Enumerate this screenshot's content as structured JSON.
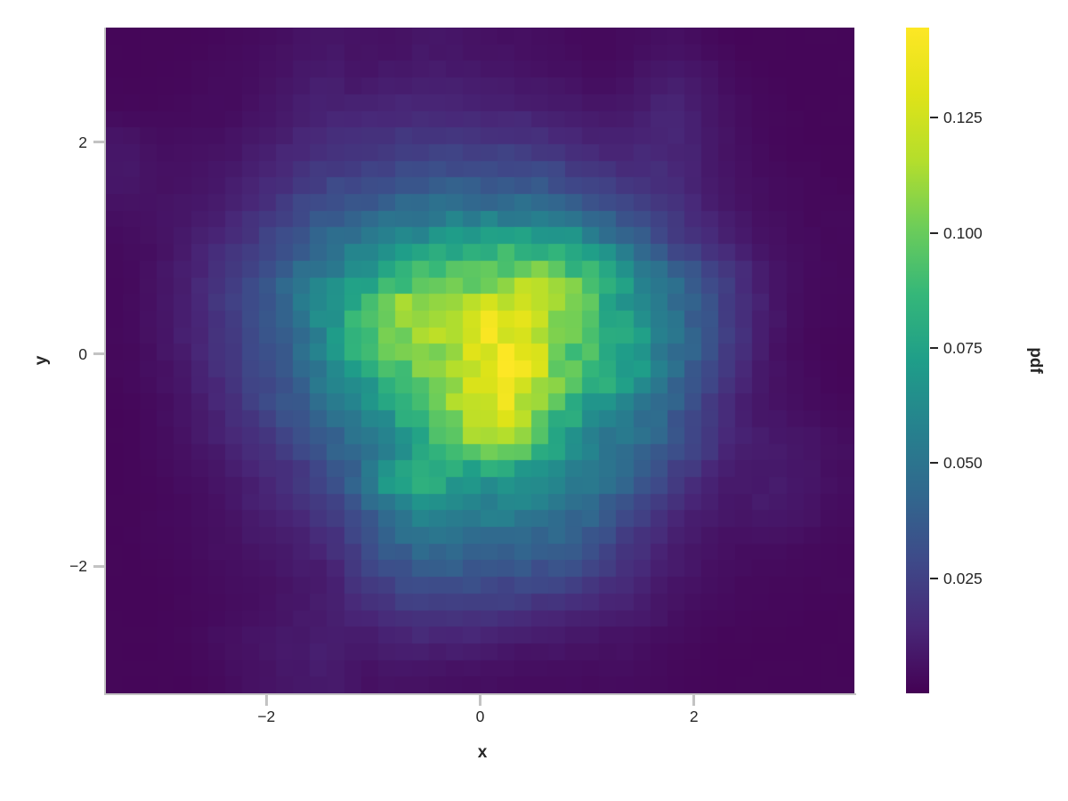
{
  "figure": {
    "background": "#ffffff",
    "text_color": "#262626",
    "spine_color": "#c3c3c3"
  },
  "axes": {
    "x": {
      "label": "x",
      "range": [
        -3.5,
        3.5
      ],
      "ticks": [
        {
          "value": -2,
          "label": "−2"
        },
        {
          "value": 0,
          "label": "0"
        },
        {
          "value": 2,
          "label": "2"
        }
      ]
    },
    "y": {
      "label": "y",
      "range": [
        -3.2,
        3.08
      ],
      "ticks": [
        {
          "value": 2,
          "label": "2"
        },
        {
          "value": 0,
          "label": "0"
        },
        {
          "value": -2,
          "label": "−2"
        }
      ]
    }
  },
  "colorbar": {
    "label": "pdf",
    "vmin": 0.0,
    "vmax": 0.1446,
    "ticks": [
      {
        "value": 0.125,
        "label": "0.125"
      },
      {
        "value": 0.1,
        "label": "0.100"
      },
      {
        "value": 0.075,
        "label": "0.075"
      },
      {
        "value": 0.05,
        "label": "0.050"
      },
      {
        "value": 0.025,
        "label": "0.025"
      }
    ]
  },
  "chart_data": {
    "type": "heatmap",
    "title": "",
    "xlabel": "x",
    "ylabel": "y",
    "value_label": "pdf",
    "x_range": [
      -3.5,
      3.5
    ],
    "y_range": [
      -3.2,
      3.08
    ],
    "vmin": 0.0,
    "vmax": 0.1446,
    "peak": {
      "x": 0.15,
      "y": -0.3,
      "value": 0.145
    },
    "colormap": {
      "name": "viridis",
      "stops": [
        "#440154",
        "#482878",
        "#3e4a89",
        "#31688e",
        "#26828e",
        "#1f9e89",
        "#35b779",
        "#6dcd59",
        "#b4de2c",
        "#dfe318",
        "#fde725"
      ]
    },
    "grid_order": "rows top (y=3.08) to bottom (y=-3.2), 20 rows x 22 cols",
    "nx": 22,
    "ny": 20,
    "values": [
      [
        0.002,
        0.002,
        0.002,
        0.003,
        0.004,
        0.006,
        0.008,
        0.006,
        0.006,
        0.008,
        0.007,
        0.006,
        0.005,
        0.004,
        0.003,
        0.004,
        0.006,
        0.004,
        0.002,
        0.002,
        0.002,
        0.002
      ],
      [
        0.002,
        0.002,
        0.003,
        0.004,
        0.005,
        0.008,
        0.01,
        0.008,
        0.01,
        0.01,
        0.009,
        0.008,
        0.007,
        0.006,
        0.004,
        0.006,
        0.01,
        0.008,
        0.004,
        0.002,
        0.002,
        0.002
      ],
      [
        0.003,
        0.003,
        0.004,
        0.004,
        0.006,
        0.01,
        0.013,
        0.012,
        0.014,
        0.015,
        0.014,
        0.013,
        0.012,
        0.01,
        0.008,
        0.009,
        0.014,
        0.01,
        0.005,
        0.003,
        0.002,
        0.002
      ],
      [
        0.008,
        0.005,
        0.005,
        0.006,
        0.009,
        0.013,
        0.017,
        0.018,
        0.021,
        0.022,
        0.022,
        0.021,
        0.02,
        0.016,
        0.012,
        0.013,
        0.015,
        0.01,
        0.006,
        0.003,
        0.002,
        0.002
      ],
      [
        0.009,
        0.006,
        0.006,
        0.009,
        0.013,
        0.018,
        0.024,
        0.026,
        0.03,
        0.033,
        0.034,
        0.033,
        0.032,
        0.028,
        0.021,
        0.018,
        0.016,
        0.011,
        0.006,
        0.004,
        0.003,
        0.002
      ],
      [
        0.006,
        0.006,
        0.008,
        0.012,
        0.018,
        0.026,
        0.034,
        0.038,
        0.044,
        0.049,
        0.05,
        0.05,
        0.048,
        0.044,
        0.035,
        0.026,
        0.02,
        0.013,
        0.008,
        0.005,
        0.003,
        0.003
      ],
      [
        0.004,
        0.006,
        0.01,
        0.016,
        0.024,
        0.035,
        0.046,
        0.055,
        0.062,
        0.068,
        0.075,
        0.08,
        0.082,
        0.075,
        0.06,
        0.042,
        0.028,
        0.018,
        0.01,
        0.006,
        0.004,
        0.003
      ],
      [
        0.003,
        0.006,
        0.012,
        0.02,
        0.03,
        0.044,
        0.058,
        0.068,
        0.085,
        0.1,
        0.095,
        0.1,
        0.11,
        0.1,
        0.085,
        0.062,
        0.048,
        0.034,
        0.02,
        0.008,
        0.004,
        0.003
      ],
      [
        0.003,
        0.007,
        0.013,
        0.022,
        0.034,
        0.048,
        0.065,
        0.09,
        0.11,
        0.115,
        0.12,
        0.13,
        0.125,
        0.105,
        0.088,
        0.068,
        0.05,
        0.036,
        0.021,
        0.009,
        0.004,
        0.003
      ],
      [
        0.003,
        0.006,
        0.012,
        0.02,
        0.03,
        0.042,
        0.06,
        0.095,
        0.105,
        0.11,
        0.115,
        0.14,
        0.13,
        0.1,
        0.09,
        0.075,
        0.052,
        0.036,
        0.02,
        0.008,
        0.003,
        0.002
      ],
      [
        0.003,
        0.005,
        0.01,
        0.018,
        0.028,
        0.038,
        0.055,
        0.07,
        0.085,
        0.1,
        0.11,
        0.145,
        0.125,
        0.095,
        0.085,
        0.072,
        0.048,
        0.032,
        0.016,
        0.007,
        0.004,
        0.002
      ],
      [
        0.002,
        0.004,
        0.008,
        0.015,
        0.024,
        0.034,
        0.05,
        0.058,
        0.075,
        0.1,
        0.115,
        0.135,
        0.11,
        0.085,
        0.065,
        0.055,
        0.04,
        0.026,
        0.012,
        0.007,
        0.005,
        0.003
      ],
      [
        0.002,
        0.004,
        0.007,
        0.012,
        0.018,
        0.026,
        0.038,
        0.045,
        0.06,
        0.085,
        0.1,
        0.105,
        0.095,
        0.07,
        0.052,
        0.045,
        0.038,
        0.026,
        0.012,
        0.01,
        0.008,
        0.005
      ],
      [
        0.002,
        0.003,
        0.005,
        0.008,
        0.013,
        0.018,
        0.03,
        0.045,
        0.08,
        0.088,
        0.07,
        0.07,
        0.065,
        0.06,
        0.05,
        0.042,
        0.025,
        0.015,
        0.008,
        0.01,
        0.008,
        0.005
      ],
      [
        0.002,
        0.003,
        0.004,
        0.006,
        0.012,
        0.015,
        0.022,
        0.035,
        0.055,
        0.065,
        0.06,
        0.055,
        0.055,
        0.05,
        0.04,
        0.028,
        0.018,
        0.01,
        0.008,
        0.01,
        0.008,
        0.004
      ],
      [
        0.002,
        0.003,
        0.004,
        0.006,
        0.008,
        0.01,
        0.015,
        0.028,
        0.04,
        0.05,
        0.045,
        0.045,
        0.042,
        0.04,
        0.03,
        0.02,
        0.012,
        0.008,
        0.005,
        0.005,
        0.004,
        0.003
      ],
      [
        0.002,
        0.002,
        0.003,
        0.005,
        0.006,
        0.008,
        0.01,
        0.022,
        0.03,
        0.035,
        0.035,
        0.032,
        0.03,
        0.028,
        0.022,
        0.014,
        0.009,
        0.006,
        0.004,
        0.003,
        0.003,
        0.003
      ],
      [
        0.002,
        0.002,
        0.003,
        0.004,
        0.005,
        0.008,
        0.01,
        0.015,
        0.02,
        0.022,
        0.022,
        0.02,
        0.018,
        0.015,
        0.012,
        0.011,
        0.007,
        0.004,
        0.003,
        0.003,
        0.002,
        0.002
      ],
      [
        0.002,
        0.002,
        0.003,
        0.006,
        0.008,
        0.009,
        0.011,
        0.008,
        0.012,
        0.012,
        0.012,
        0.01,
        0.008,
        0.008,
        0.006,
        0.006,
        0.004,
        0.003,
        0.002,
        0.002,
        0.002,
        0.002
      ],
      [
        0.002,
        0.002,
        0.002,
        0.004,
        0.006,
        0.008,
        0.01,
        0.006,
        0.006,
        0.006,
        0.005,
        0.005,
        0.004,
        0.004,
        0.004,
        0.004,
        0.003,
        0.002,
        0.002,
        0.002,
        0.002,
        0.002
      ]
    ]
  }
}
